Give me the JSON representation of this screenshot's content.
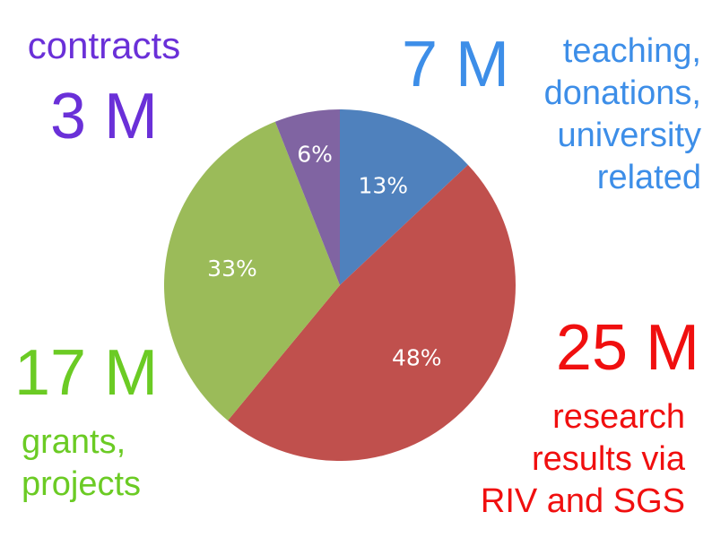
{
  "chart_data": {
    "type": "pie",
    "slices": [
      {
        "name": "teaching, donations, university related",
        "amount": "7 M",
        "percent_label": "13%",
        "value": 13,
        "color": "#4F81BD",
        "text_color": "#3D8EE8",
        "desc_lines": [
          "teaching,",
          "donations,",
          "university",
          "related"
        ]
      },
      {
        "name": "research results via RIV and SGS",
        "amount": "25 M",
        "percent_label": "48%",
        "value": 48,
        "color": "#C0504D",
        "text_color": "#F00F0F",
        "desc_lines": [
          "research",
          "results via",
          "RIV and SGS"
        ]
      },
      {
        "name": "grants, projects",
        "amount": "17 M",
        "percent_label": "33%",
        "value": 33,
        "color": "#9BBB59",
        "text_color": "#6BCB24",
        "desc_lines": [
          "grants,",
          "projects"
        ]
      },
      {
        "name": "contracts",
        "amount": "3 M",
        "percent_label": "6%",
        "value": 6,
        "color": "#8064A2",
        "text_color": "#6A30D8",
        "desc_lines": [
          "contracts"
        ]
      }
    ],
    "start_angle": "12 o'clock",
    "direction": "clockwise",
    "percent_label_color": "#ffffff"
  }
}
